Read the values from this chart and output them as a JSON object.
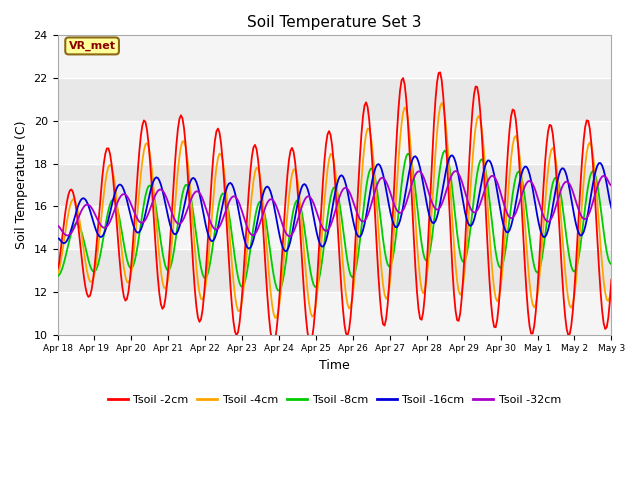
{
  "title": "Soil Temperature Set 3",
  "xlabel": "Time",
  "ylabel": "Soil Temperature (C)",
  "ylim": [
    10,
    24
  ],
  "n_days": 15,
  "fig_bg": "#ffffff",
  "plot_bg_light": "#e8e8e8",
  "plot_bg_dark": "#d0d0d0",
  "annotation_text": "VR_met",
  "annotation_bg": "#ffff99",
  "annotation_border": "#8B6914",
  "series_colors": {
    "Tsoil -2cm": "#ff0000",
    "Tsoil -4cm": "#ffa500",
    "Tsoil -8cm": "#00cc00",
    "Tsoil -16cm": "#0000dd",
    "Tsoil -32cm": "#aa00cc"
  },
  "lw": 1.3,
  "xtick_labels": [
    "Apr 18",
    "Apr 19",
    "Apr 20",
    "Apr 21",
    "Apr 22",
    "Apr 23",
    "Apr 24",
    "Apr 25",
    "Apr 26",
    "Apr 27",
    "Apr 28",
    "Apr 29",
    "Apr 30",
    "May 1",
    "May 2",
    "May 3"
  ],
  "ytick_values": [
    10,
    12,
    14,
    16,
    18,
    20,
    22,
    24
  ]
}
